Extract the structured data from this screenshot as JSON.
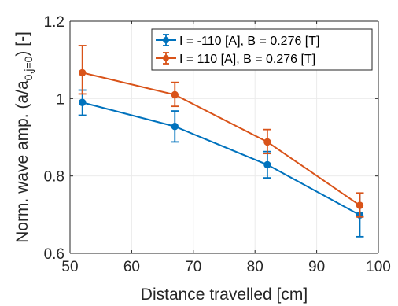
{
  "chart_data": {
    "type": "line",
    "title": "",
    "xlabel": "Distance travelled [cm]",
    "ylabel_main": "Norm. wave amp. (a/a",
    "ylabel_sub": "0,j=0",
    "ylabel_tail": ") [-]",
    "xlim": [
      50,
      100
    ],
    "ylim": [
      0.6,
      1.2
    ],
    "xticks": [
      50,
      60,
      70,
      80,
      90,
      100
    ],
    "yticks": [
      0.6,
      0.8,
      1,
      1.2
    ],
    "xtick_labels": [
      "50",
      "60",
      "70",
      "80",
      "90",
      "100"
    ],
    "ytick_labels": [
      "0.6",
      "0.8",
      "1",
      "1.2"
    ],
    "grid": true,
    "legend_position": "top-right",
    "series": [
      {
        "name": "I = -110 [A], B = 0.276 [T]",
        "color": "#0072BD",
        "marker": "circle",
        "x": [
          52,
          67,
          82,
          97
        ],
        "y": [
          0.99,
          0.928,
          0.829,
          0.699
        ],
        "err_low": [
          0.033,
          0.04,
          0.034,
          0.056
        ],
        "err_high": [
          0.032,
          0.04,
          0.034,
          0.056
        ]
      },
      {
        "name": "I = 110 [A], B = 0.276 [T]",
        "color": "#D95319",
        "marker": "circle",
        "x": [
          52,
          67,
          82,
          97
        ],
        "y": [
          1.067,
          1.01,
          0.888,
          0.724
        ],
        "err_low": [
          0.055,
          0.03,
          0.03,
          0.03
        ],
        "err_high": [
          0.07,
          0.032,
          0.032,
          0.032
        ]
      }
    ]
  }
}
